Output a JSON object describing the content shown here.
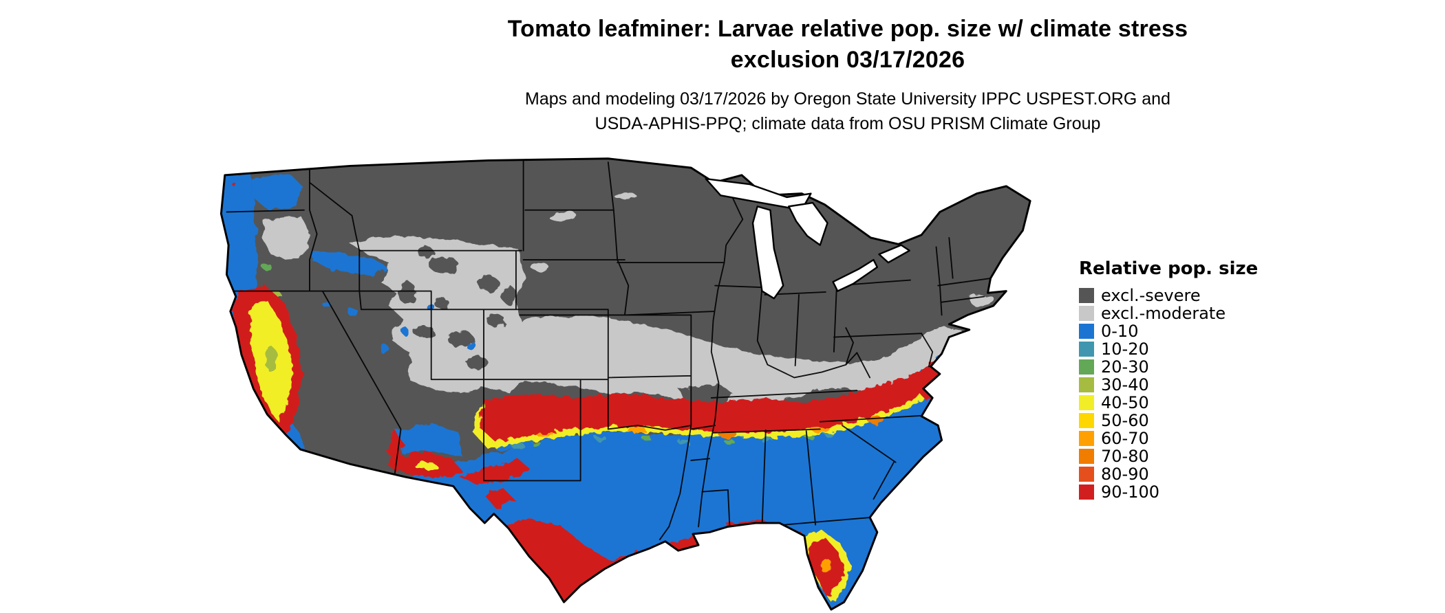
{
  "title": {
    "line1": "Tomato leafminer: Larvae relative pop. size w/ climate stress",
    "line2": "exclusion 03/17/2026"
  },
  "subtitle": {
    "line1": "Maps and modeling 03/17/2026 by Oregon State University IPPC USPEST.ORG and",
    "line2": "USDA-APHIS-PPQ; climate data from OSU PRISM Climate Group"
  },
  "legend": {
    "title": "Relative pop. size",
    "items": [
      {
        "label": "excl.-severe",
        "color": "#555555"
      },
      {
        "label": "excl.-moderate",
        "color": "#c8c8c8"
      },
      {
        "label": "0-10",
        "color": "#1b74d2"
      },
      {
        "label": "10-20",
        "color": "#3f96ae"
      },
      {
        "label": "20-30",
        "color": "#62a857"
      },
      {
        "label": "30-40",
        "color": "#a6bc40"
      },
      {
        "label": "40-50",
        "color": "#f1ee27"
      },
      {
        "label": "50-60",
        "color": "#ffd700"
      },
      {
        "label": "60-70",
        "color": "#ffa000"
      },
      {
        "label": "70-80",
        "color": "#f07c00"
      },
      {
        "label": "80-90",
        "color": "#e44f1d"
      },
      {
        "label": "90-100",
        "color": "#d11f1f"
      }
    ]
  }
}
